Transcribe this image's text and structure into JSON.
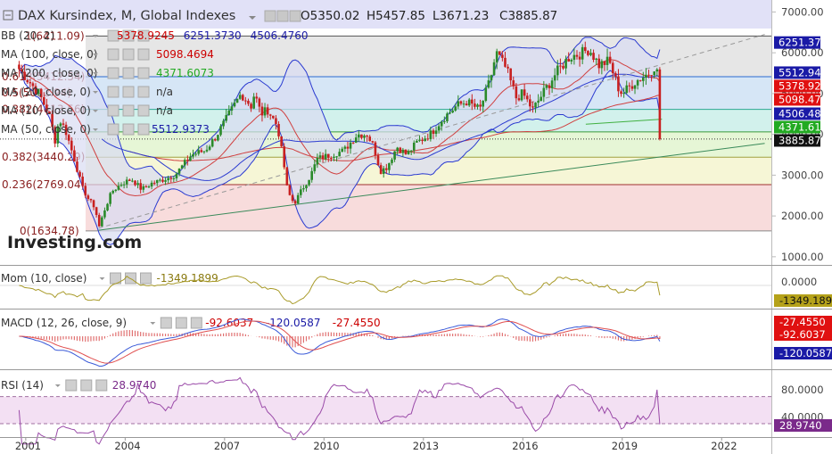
{
  "header": {
    "symbol": "DAX Kursindex, M, Global Indexes",
    "ohlc": {
      "o": "5350.02",
      "h": "5457.85",
      "l": "3671.23",
      "c": "3885.87"
    }
  },
  "logo": "Investing.com",
  "indicators_main": [
    {
      "label": "BB (20, 2)",
      "values": [
        "5378.9245",
        "6251.3730",
        "4506.4760"
      ],
      "colors": [
        "#cc0000",
        "#1a1aa6",
        "#1a1aa6"
      ]
    },
    {
      "label": "MA (100, close, 0)",
      "values": [
        "5098.4694"
      ],
      "colors": [
        "#cc0000"
      ]
    },
    {
      "label": "MA (200, close, 0)",
      "values": [
        "4371.6073"
      ],
      "colors": [
        "#22aa22"
      ]
    },
    {
      "label": "MA (20, close, 0)",
      "values": [
        "n/a"
      ],
      "colors": [
        "#333333"
      ]
    },
    {
      "label": "MA (10, close, 0)",
      "values": [
        "n/a"
      ],
      "colors": [
        "#333333"
      ]
    },
    {
      "label": "MA (50, close, 0)",
      "values": [
        "5512.9373"
      ],
      "colors": [
        "#1a1aa6"
      ]
    }
  ],
  "fib_labels": [
    {
      "label": "1(6411.09)",
      "y": 6411.09
    },
    {
      "label": "0.618(5412.54)",
      "y": 5412.54
    },
    {
      "label": "0.5(5022.94)",
      "y": 5022.94
    },
    {
      "label": "0.382(4613.56)",
      "y": 4613.56
    },
    {
      "label": "0.382(3440.29)",
      "y": 3440.29
    },
    {
      "label": "0.236(2769.04)",
      "y": 2769.04
    },
    {
      "label": "0(1634.78)",
      "y": 1634.78
    }
  ],
  "right_tags": [
    {
      "text": "6251.37",
      "value": 6251.37,
      "bg": "#1a1aa6",
      "fg": "#ffffff"
    },
    {
      "text": "5512.94",
      "value": 5512.94,
      "bg": "#1a1aa6",
      "fg": "#ffffff"
    },
    {
      "text": "5378.92",
      "value": 5378.92,
      "bg": "#e01010",
      "fg": "#ffffff"
    },
    {
      "text": "5098.47",
      "value": 5098.47,
      "bg": "#e01010",
      "fg": "#ffffff"
    },
    {
      "text": "4506.48",
      "value": 4506.48,
      "bg": "#1a1aa6",
      "fg": "#ffffff"
    },
    {
      "text": "4371.61",
      "value": 4371.61,
      "bg": "#22aa22",
      "fg": "#ffffff"
    },
    {
      "text": "3885.87",
      "value": 3885.87,
      "bg": "#111111",
      "fg": "#ffffff"
    }
  ],
  "panes": {
    "mom": {
      "label": "Mom (10, close)",
      "value": "-1349.1899",
      "tag": "-1349.1899",
      "ticks": [
        "0.0000"
      ]
    },
    "macd": {
      "label": "MACD (12, 26, close, 9)",
      "values": [
        "-92.6037",
        "-120.0587",
        "-27.4550"
      ],
      "tags": [
        "-27.4550",
        "-92.6037",
        "-120.0587"
      ]
    },
    "rsi": {
      "label": "RSI (14)",
      "value": "28.9740",
      "tag": "28.9740",
      "ticks": [
        "80.0000",
        "40.0000"
      ]
    }
  },
  "colors": {
    "candle_up": "#2a8a2a",
    "candle_down": "#c82020",
    "bb_fill": "#d8dcf2",
    "bb_line": "#2a3ad0",
    "ma100": "#d04040",
    "ma200": "#40b040",
    "trend": "#3a8a5a",
    "mom_line": "#a89a28",
    "macd_line": "#3a5ad8",
    "signal_line": "#e05050",
    "rsi_line": "#9a4aa8",
    "rsi_band": "#f3e0f3"
  },
  "chart_data": {
    "type": "candlestick",
    "title": "DAX Kursindex, M, Global Indexes",
    "interval": "Monthly",
    "x_ticks": [
      "2001",
      "2004",
      "2007",
      "2010",
      "2013",
      "2016",
      "2019",
      "2022"
    ],
    "y_ticks": [
      1000,
      2000,
      3000,
      4000,
      5000,
      6000,
      7000
    ],
    "y_tick_labels": [
      "1000.00",
      "2000.00",
      "3000.00",
      "4000.00",
      "5000.00",
      "6000.00",
      "7000.00"
    ],
    "ylim": [
      800,
      7250
    ],
    "x_range": [
      2000.6,
      2023.5
    ],
    "close_series": [
      [
        2000.8,
        5600
      ],
      [
        2001.0,
        5400
      ],
      [
        2001.2,
        5200
      ],
      [
        2001.4,
        5000
      ],
      [
        2001.7,
        4500
      ],
      [
        2001.9,
        3800
      ],
      [
        2002.0,
        4400
      ],
      [
        2002.2,
        4100
      ],
      [
        2002.5,
        3300
      ],
      [
        2002.7,
        2700
      ],
      [
        2002.9,
        2400
      ],
      [
        2003.1,
        2200
      ],
      [
        2003.2,
        1700
      ],
      [
        2003.4,
        2200
      ],
      [
        2003.6,
        2600
      ],
      [
        2003.9,
        2800
      ],
      [
        2004.2,
        2900
      ],
      [
        2004.5,
        2650
      ],
      [
        2004.8,
        2800
      ],
      [
        2005.0,
        2850
      ],
      [
        2005.5,
        3000
      ],
      [
        2006.0,
        3500
      ],
      [
        2006.4,
        3600
      ],
      [
        2006.7,
        3900
      ],
      [
        2007.0,
        4300
      ],
      [
        2007.5,
        5000
      ],
      [
        2007.8,
        4700
      ],
      [
        2007.9,
        5000
      ],
      [
        2008.1,
        4500
      ],
      [
        2008.3,
        4600
      ],
      [
        2008.6,
        4200
      ],
      [
        2008.8,
        3200
      ],
      [
        2008.9,
        2600
      ],
      [
        2009.1,
        2300
      ],
      [
        2009.3,
        2600
      ],
      [
        2009.6,
        3000
      ],
      [
        2009.8,
        3400
      ],
      [
        2010.2,
        3500
      ],
      [
        2010.6,
        3600
      ],
      [
        2011.0,
        4000
      ],
      [
        2011.3,
        4000
      ],
      [
        2011.5,
        3700
      ],
      [
        2011.7,
        3100
      ],
      [
        2011.9,
        3200
      ],
      [
        2012.2,
        3700
      ],
      [
        2012.5,
        3500
      ],
      [
        2012.8,
        3800
      ],
      [
        2013.2,
        4000
      ],
      [
        2013.6,
        4400
      ],
      [
        2014.0,
        4700
      ],
      [
        2014.3,
        4800
      ],
      [
        2014.7,
        4600
      ],
      [
        2015.0,
        5300
      ],
      [
        2015.2,
        6000
      ],
      [
        2015.5,
        5600
      ],
      [
        2015.8,
        4900
      ],
      [
        2016.0,
        5000
      ],
      [
        2016.3,
        4600
      ],
      [
        2016.6,
        5000
      ],
      [
        2017.0,
        5500
      ],
      [
        2017.4,
        5900
      ],
      [
        2017.8,
        6000
      ],
      [
        2018.0,
        6100
      ],
      [
        2018.3,
        5700
      ],
      [
        2018.6,
        5800
      ],
      [
        2018.9,
        5100
      ],
      [
        2019.0,
        5000
      ],
      [
        2019.4,
        5300
      ],
      [
        2019.8,
        5500
      ],
      [
        2020.0,
        5700
      ],
      [
        2020.1,
        5350
      ],
      [
        2020.2,
        3886
      ]
    ],
    "last_close": 3885.87
  }
}
